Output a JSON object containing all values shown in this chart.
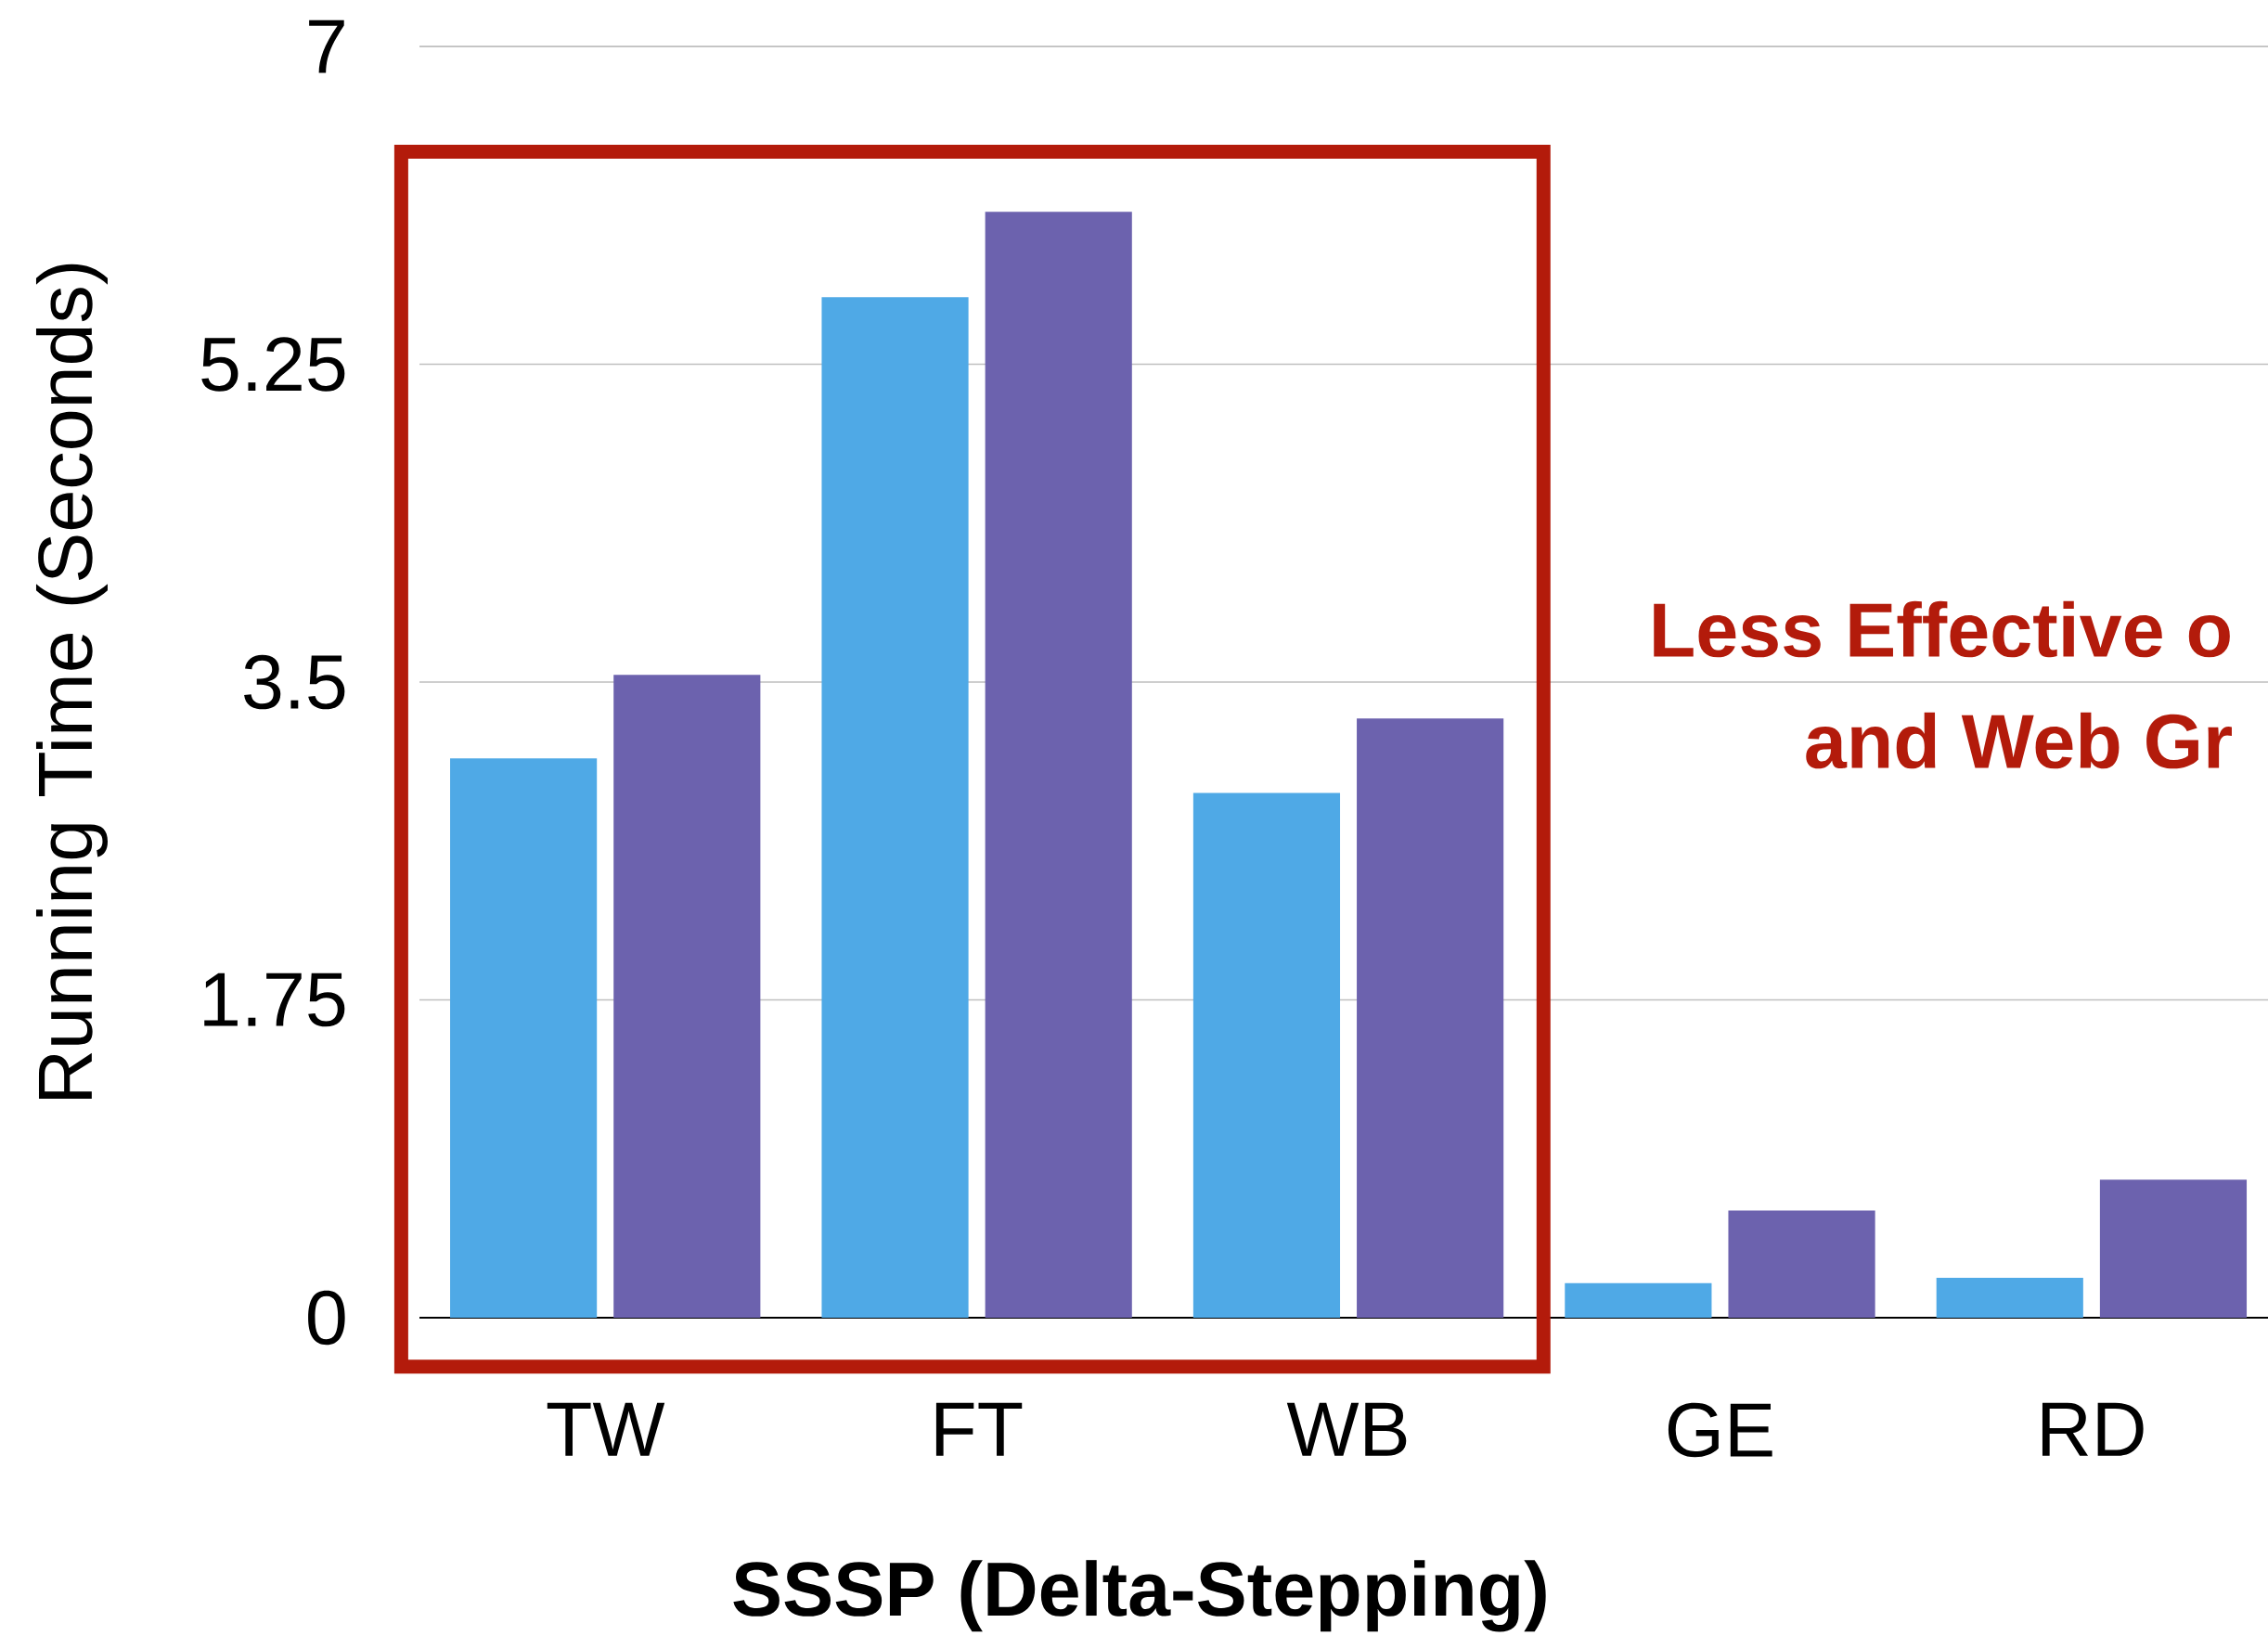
{
  "chart_data": {
    "type": "bar",
    "xlabel": "SSSP (Delta-Stepping)",
    "ylabel": "Running Time (Seconds)",
    "categories": [
      "TW",
      "FT",
      "WB",
      "GE",
      "RD"
    ],
    "series": [
      {
        "color": "#4fa9e6",
        "values": [
          3.08,
          5.62,
          2.89,
          0.19,
          0.22
        ]
      },
      {
        "color": "#6c62ae",
        "values": [
          3.54,
          6.09,
          3.3,
          0.59,
          0.76
        ]
      }
    ],
    "ylim": [
      0,
      7
    ],
    "yticks": [
      0,
      1.75,
      3.5,
      5.25,
      7
    ],
    "grid": "y",
    "annotations": [
      "Less Effective o",
      "and Web Gr"
    ]
  }
}
